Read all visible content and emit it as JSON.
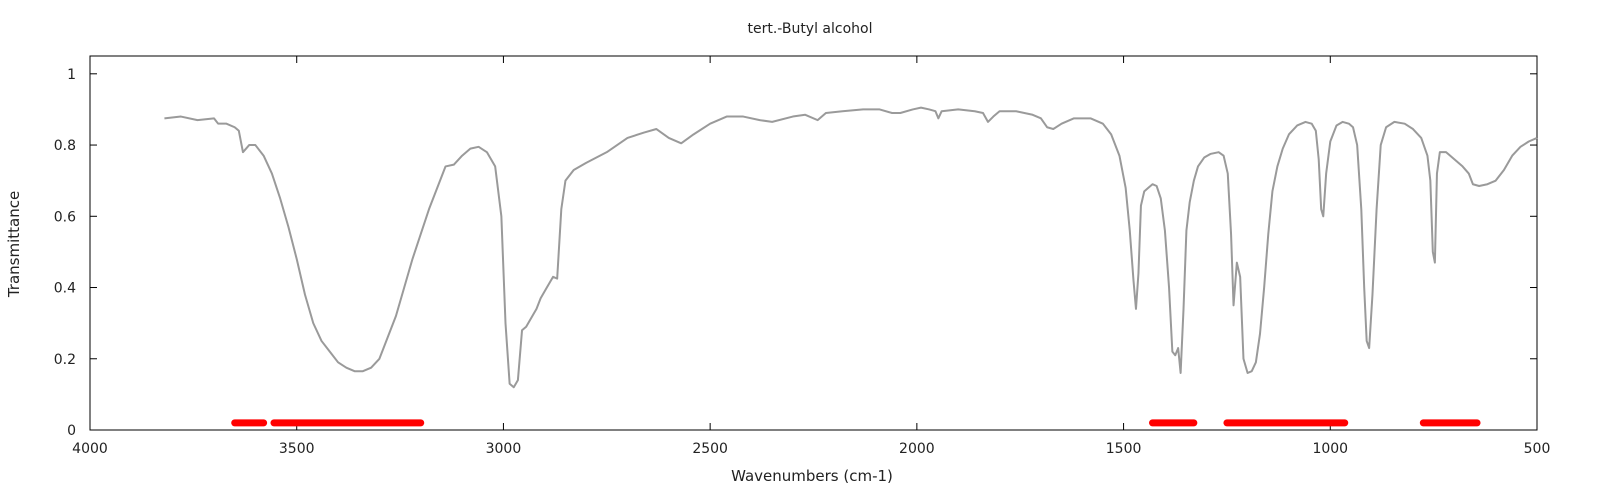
{
  "chart_data": {
    "type": "line",
    "title": "tert.-Butyl alcohol",
    "xlabel": "Wavenumbers (cm-1)",
    "ylabel": "Transmittance",
    "xlim": [
      4000,
      500
    ],
    "ylim": [
      0,
      1.05
    ],
    "x_reversed": true,
    "grid": false,
    "x_ticks": [
      4000,
      3500,
      3000,
      2500,
      2000,
      1500,
      1000,
      500
    ],
    "x_tick_labels": [
      "4000",
      "3500",
      "3000",
      "2500",
      "2000",
      "1500",
      "1000",
      "500"
    ],
    "y_ticks": [
      0,
      0.2,
      0.4,
      0.6,
      0.8,
      1
    ],
    "y_tick_labels": [
      "0",
      "0.2",
      "0.4",
      "0.6",
      "0.8",
      "1"
    ],
    "series": [
      {
        "color": "#9a9a9a",
        "points": [
          [
            3820,
            0.875
          ],
          [
            3780,
            0.88
          ],
          [
            3740,
            0.87
          ],
          [
            3700,
            0.875
          ],
          [
            3690,
            0.86
          ],
          [
            3670,
            0.86
          ],
          [
            3650,
            0.85
          ],
          [
            3640,
            0.84
          ],
          [
            3630,
            0.78
          ],
          [
            3615,
            0.8
          ],
          [
            3600,
            0.8
          ],
          [
            3580,
            0.77
          ],
          [
            3560,
            0.72
          ],
          [
            3540,
            0.65
          ],
          [
            3520,
            0.57
          ],
          [
            3500,
            0.48
          ],
          [
            3480,
            0.38
          ],
          [
            3460,
            0.3
          ],
          [
            3440,
            0.25
          ],
          [
            3420,
            0.22
          ],
          [
            3400,
            0.19
          ],
          [
            3380,
            0.175
          ],
          [
            3360,
            0.165
          ],
          [
            3340,
            0.165
          ],
          [
            3320,
            0.175
          ],
          [
            3300,
            0.2
          ],
          [
            3280,
            0.26
          ],
          [
            3260,
            0.32
          ],
          [
            3240,
            0.4
          ],
          [
            3220,
            0.48
          ],
          [
            3200,
            0.55
          ],
          [
            3180,
            0.62
          ],
          [
            3160,
            0.68
          ],
          [
            3140,
            0.74
          ],
          [
            3120,
            0.745
          ],
          [
            3100,
            0.77
          ],
          [
            3080,
            0.79
          ],
          [
            3060,
            0.795
          ],
          [
            3040,
            0.78
          ],
          [
            3020,
            0.74
          ],
          [
            3005,
            0.6
          ],
          [
            2995,
            0.3
          ],
          [
            2985,
            0.13
          ],
          [
            2975,
            0.12
          ],
          [
            2965,
            0.14
          ],
          [
            2955,
            0.28
          ],
          [
            2945,
            0.29
          ],
          [
            2930,
            0.32
          ],
          [
            2920,
            0.34
          ],
          [
            2910,
            0.37
          ],
          [
            2895,
            0.4
          ],
          [
            2880,
            0.43
          ],
          [
            2870,
            0.425
          ],
          [
            2860,
            0.62
          ],
          [
            2850,
            0.7
          ],
          [
            2830,
            0.73
          ],
          [
            2800,
            0.75
          ],
          [
            2750,
            0.78
          ],
          [
            2700,
            0.82
          ],
          [
            2660,
            0.835
          ],
          [
            2630,
            0.845
          ],
          [
            2600,
            0.82
          ],
          [
            2570,
            0.805
          ],
          [
            2540,
            0.83
          ],
          [
            2500,
            0.86
          ],
          [
            2460,
            0.88
          ],
          [
            2420,
            0.88
          ],
          [
            2380,
            0.87
          ],
          [
            2350,
            0.865
          ],
          [
            2300,
            0.88
          ],
          [
            2270,
            0.885
          ],
          [
            2240,
            0.87
          ],
          [
            2220,
            0.89
          ],
          [
            2180,
            0.895
          ],
          [
            2130,
            0.9
          ],
          [
            2090,
            0.9
          ],
          [
            2060,
            0.89
          ],
          [
            2040,
            0.89
          ],
          [
            2010,
            0.9
          ],
          [
            1990,
            0.905
          ],
          [
            1970,
            0.9
          ],
          [
            1955,
            0.895
          ],
          [
            1948,
            0.875
          ],
          [
            1940,
            0.895
          ],
          [
            1900,
            0.9
          ],
          [
            1860,
            0.895
          ],
          [
            1840,
            0.89
          ],
          [
            1828,
            0.865
          ],
          [
            1815,
            0.88
          ],
          [
            1800,
            0.895
          ],
          [
            1760,
            0.895
          ],
          [
            1720,
            0.885
          ],
          [
            1700,
            0.875
          ],
          [
            1685,
            0.85
          ],
          [
            1670,
            0.845
          ],
          [
            1650,
            0.86
          ],
          [
            1620,
            0.875
          ],
          [
            1580,
            0.875
          ],
          [
            1550,
            0.86
          ],
          [
            1530,
            0.83
          ],
          [
            1510,
            0.77
          ],
          [
            1495,
            0.68
          ],
          [
            1485,
            0.56
          ],
          [
            1476,
            0.42
          ],
          [
            1470,
            0.34
          ],
          [
            1464,
            0.44
          ],
          [
            1458,
            0.63
          ],
          [
            1450,
            0.67
          ],
          [
            1440,
            0.68
          ],
          [
            1430,
            0.69
          ],
          [
            1420,
            0.685
          ],
          [
            1410,
            0.65
          ],
          [
            1400,
            0.56
          ],
          [
            1390,
            0.4
          ],
          [
            1382,
            0.22
          ],
          [
            1375,
            0.21
          ],
          [
            1368,
            0.23
          ],
          [
            1362,
            0.16
          ],
          [
            1355,
            0.34
          ],
          [
            1348,
            0.56
          ],
          [
            1340,
            0.64
          ],
          [
            1330,
            0.7
          ],
          [
            1320,
            0.74
          ],
          [
            1305,
            0.765
          ],
          [
            1290,
            0.775
          ],
          [
            1270,
            0.78
          ],
          [
            1258,
            0.77
          ],
          [
            1248,
            0.72
          ],
          [
            1240,
            0.55
          ],
          [
            1234,
            0.35
          ],
          [
            1226,
            0.47
          ],
          [
            1218,
            0.43
          ],
          [
            1210,
            0.2
          ],
          [
            1200,
            0.16
          ],
          [
            1190,
            0.165
          ],
          [
            1180,
            0.19
          ],
          [
            1170,
            0.27
          ],
          [
            1160,
            0.4
          ],
          [
            1150,
            0.55
          ],
          [
            1140,
            0.67
          ],
          [
            1128,
            0.74
          ],
          [
            1115,
            0.79
          ],
          [
            1100,
            0.83
          ],
          [
            1080,
            0.855
          ],
          [
            1060,
            0.865
          ],
          [
            1045,
            0.86
          ],
          [
            1035,
            0.84
          ],
          [
            1028,
            0.76
          ],
          [
            1022,
            0.62
          ],
          [
            1017,
            0.6
          ],
          [
            1010,
            0.72
          ],
          [
            1000,
            0.81
          ],
          [
            985,
            0.855
          ],
          [
            970,
            0.865
          ],
          [
            955,
            0.86
          ],
          [
            945,
            0.85
          ],
          [
            935,
            0.8
          ],
          [
            925,
            0.62
          ],
          [
            918,
            0.4
          ],
          [
            912,
            0.25
          ],
          [
            906,
            0.23
          ],
          [
            898,
            0.38
          ],
          [
            888,
            0.62
          ],
          [
            878,
            0.8
          ],
          [
            865,
            0.85
          ],
          [
            845,
            0.865
          ],
          [
            820,
            0.86
          ],
          [
            800,
            0.845
          ],
          [
            780,
            0.82
          ],
          [
            765,
            0.77
          ],
          [
            758,
            0.7
          ],
          [
            752,
            0.5
          ],
          [
            747,
            0.47
          ],
          [
            742,
            0.72
          ],
          [
            735,
            0.78
          ],
          [
            720,
            0.78
          ],
          [
            700,
            0.76
          ],
          [
            680,
            0.74
          ],
          [
            665,
            0.72
          ],
          [
            655,
            0.69
          ],
          [
            640,
            0.685
          ],
          [
            620,
            0.69
          ],
          [
            600,
            0.7
          ],
          [
            580,
            0.73
          ],
          [
            560,
            0.77
          ],
          [
            540,
            0.795
          ],
          [
            520,
            0.81
          ],
          [
            500,
            0.82
          ]
        ]
      }
    ],
    "highlight_bands": {
      "color": "#ff0000",
      "y": 0.02,
      "ranges": [
        [
          3650,
          3580
        ],
        [
          3555,
          3200
        ],
        [
          1430,
          1330
        ],
        [
          1250,
          965
        ],
        [
          775,
          645
        ]
      ]
    }
  }
}
